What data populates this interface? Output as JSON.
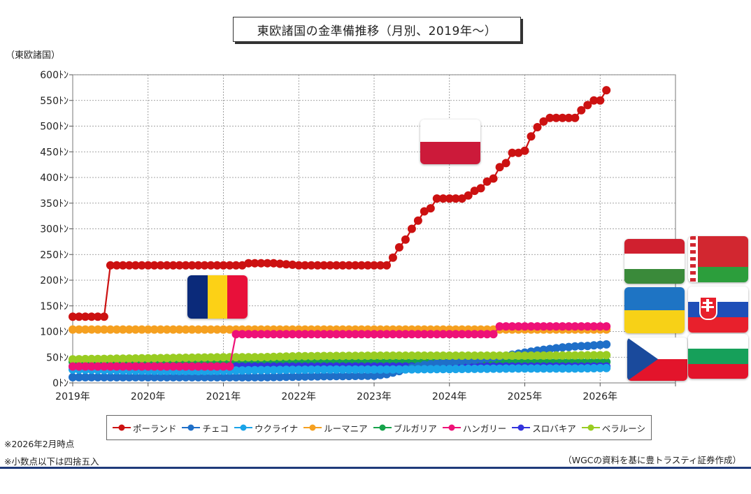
{
  "title": "東欧諸国の金準備推移（月別、2019年〜）",
  "unit_label": "（東欧諸国）",
  "notes": [
    "※2026年2月時点",
    "※小数点以下は四捨五入"
  ],
  "source": "（WGCの資料を基に豊トラスティ証券作成）",
  "colors": {
    "poland": "#cc1111",
    "czech": "#1f6fc8",
    "ukraine": "#1aa3e8",
    "romania": "#f5a020",
    "bulgaria": "#16a34a",
    "hungary": "#ee1177",
    "slovakia": "#3333dd",
    "belarus": "#99cc22",
    "footer": "#1f3a7a"
  },
  "flags": [
    "poland-flag-icon",
    "romania-flag-icon",
    "hungary-flag-icon",
    "belarus-flag-icon",
    "ukraine-flag-icon",
    "slovakia-flag-icon",
    "czech-flag-icon",
    "bulgaria-flag-icon"
  ],
  "chart_data": {
    "type": "line",
    "title": "東欧諸国の金準備推移（月別、2019年〜）",
    "ylabel": "（東欧諸国）",
    "ylim": [
      0,
      600
    ],
    "yticks": [
      0,
      50,
      100,
      150,
      200,
      250,
      300,
      350,
      400,
      450,
      500,
      550,
      600
    ],
    "ytick_labels": [
      "0ﾄﾝ",
      "50ﾄﾝ",
      "100ﾄﾝ",
      "150ﾄﾝ",
      "200ﾄﾝ",
      "250ﾄﾝ",
      "300ﾄﾝ",
      "350ﾄﾝ",
      "400ﾄﾝ",
      "450ﾄﾝ",
      "500ﾄﾝ",
      "550ﾄﾝ",
      "600ﾄﾝ"
    ],
    "x_start": "2019-01",
    "x_end_axis": "2027-01",
    "xtick_labels": [
      "2019年",
      "2020年",
      "2021年",
      "2022年",
      "2023年",
      "2024年",
      "2025年",
      "2026年"
    ],
    "grid": true,
    "legend_position": "bottom",
    "series": [
      {
        "name": "ポーランド",
        "color_key": "poland",
        "segments": [
          [
            0,
            129
          ],
          [
            5,
            129
          ],
          [
            6,
            229
          ],
          [
            14,
            229
          ],
          [
            15,
            229
          ],
          [
            27,
            229
          ],
          [
            28,
            233
          ],
          [
            32,
            233
          ],
          [
            36,
            229
          ],
          [
            50,
            229
          ],
          [
            51,
            244
          ],
          [
            52,
            264
          ],
          [
            53,
            279
          ],
          [
            54,
            300
          ],
          [
            55,
            316
          ],
          [
            56,
            334
          ],
          [
            57,
            340
          ],
          [
            58,
            359
          ],
          [
            62,
            359
          ],
          [
            63,
            365
          ],
          [
            64,
            374
          ],
          [
            65,
            379
          ],
          [
            66,
            392
          ],
          [
            67,
            398
          ],
          [
            68,
            420
          ],
          [
            69,
            428
          ],
          [
            70,
            448
          ],
          [
            71,
            448
          ],
          [
            72,
            452
          ],
          [
            73,
            480
          ],
          [
            74,
            498
          ],
          [
            75,
            509
          ],
          [
            76,
            516
          ],
          [
            80,
            516
          ],
          [
            81,
            531
          ],
          [
            82,
            541
          ],
          [
            83,
            550
          ],
          [
            84,
            550
          ],
          [
            85,
            570
          ]
        ]
      },
      {
        "name": "チェコ",
        "color_key": "czech",
        "segments": [
          [
            0,
            11
          ],
          [
            30,
            11
          ],
          [
            40,
            13
          ],
          [
            48,
            14
          ],
          [
            50,
            17
          ],
          [
            52,
            23
          ],
          [
            54,
            30
          ],
          [
            56,
            35
          ],
          [
            58,
            38
          ],
          [
            60,
            40
          ],
          [
            62,
            43
          ],
          [
            64,
            45
          ],
          [
            66,
            48
          ],
          [
            68,
            51
          ],
          [
            70,
            55
          ],
          [
            72,
            59
          ],
          [
            74,
            63
          ],
          [
            76,
            66
          ],
          [
            78,
            69
          ],
          [
            80,
            71
          ],
          [
            82,
            72
          ],
          [
            84,
            74
          ],
          [
            85,
            75
          ]
        ]
      },
      {
        "name": "ウクライナ",
        "color_key": "ukraine",
        "segments": [
          [
            0,
            26
          ],
          [
            10,
            24
          ],
          [
            20,
            23
          ],
          [
            30,
            25
          ],
          [
            40,
            26
          ],
          [
            50,
            26
          ],
          [
            60,
            27
          ],
          [
            70,
            28
          ],
          [
            80,
            28
          ],
          [
            85,
            29
          ]
        ]
      },
      {
        "name": "ルーマニア",
        "color_key": "romania",
        "segments": [
          [
            0,
            104
          ],
          [
            85,
            104
          ]
        ]
      },
      {
        "name": "ブルガリア",
        "color_key": "bulgaria",
        "segments": [
          [
            0,
            41
          ],
          [
            85,
            41
          ]
        ]
      },
      {
        "name": "ハンガリー",
        "color_key": "hungary",
        "segments": [
          [
            0,
            32
          ],
          [
            25,
            32
          ],
          [
            26,
            95
          ],
          [
            67,
            95
          ],
          [
            68,
            110
          ],
          [
            85,
            110
          ]
        ]
      },
      {
        "name": "スロバキア",
        "color_key": "slovakia",
        "segments": [
          [
            0,
            32
          ],
          [
            85,
            32
          ]
        ]
      },
      {
        "name": "ベラルーシ",
        "color_key": "belarus",
        "segments": [
          [
            0,
            46
          ],
          [
            6,
            47
          ],
          [
            12,
            48
          ],
          [
            18,
            49
          ],
          [
            24,
            50
          ],
          [
            30,
            50
          ],
          [
            36,
            52
          ],
          [
            48,
            53
          ],
          [
            60,
            53
          ],
          [
            72,
            53
          ],
          [
            85,
            54
          ]
        ]
      }
    ]
  }
}
